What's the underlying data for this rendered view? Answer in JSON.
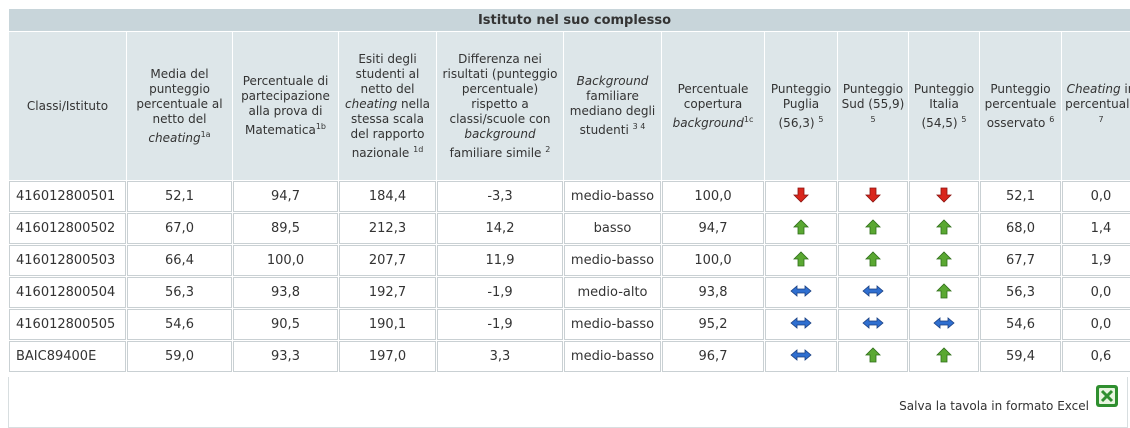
{
  "title": "Istituto nel suo complesso",
  "headers": [
    [
      {
        "text": "Classi/Istituto"
      }
    ],
    [
      {
        "text": "Media del punteggio percentuale al netto del "
      },
      {
        "text": "cheating",
        "style": "i"
      },
      {
        "text": "1a",
        "style": "sup"
      }
    ],
    [
      {
        "text": "Percentuale di partecipazione alla prova di Matematica"
      },
      {
        "text": "1b",
        "style": "sup"
      }
    ],
    [
      {
        "text": "Esiti degli studenti al netto del "
      },
      {
        "text": "cheating",
        "style": "i"
      },
      {
        "text": " nella stessa scala del rapporto nazionale "
      },
      {
        "text": "1d",
        "style": "sup"
      }
    ],
    [
      {
        "text": "Differenza nei risultati (punteggio percentuale) rispetto a classi/scuole con "
      },
      {
        "text": "background",
        "style": "i"
      },
      {
        "text": " familiare simile "
      },
      {
        "text": "2",
        "style": "sup"
      }
    ],
    [
      {
        "text": "Background",
        "style": "i"
      },
      {
        "text": " familiare mediano degli studenti "
      },
      {
        "text": "3 4",
        "style": "sup"
      }
    ],
    [
      {
        "text": "Percentuale copertura "
      },
      {
        "text": "background",
        "style": "i"
      },
      {
        "text": "1c",
        "style": "sup"
      }
    ],
    [
      {
        "text": "Punteggio Puglia (56,3) "
      },
      {
        "text": "5",
        "style": "sup"
      }
    ],
    [
      {
        "text": "Punteggio Sud (55,9) "
      },
      {
        "text": "5",
        "style": "sup"
      }
    ],
    [
      {
        "text": "Punteggio Italia (54,5) "
      },
      {
        "text": "5",
        "style": "sup"
      }
    ],
    [
      {
        "text": "Punteggio percentuale osservato "
      },
      {
        "text": "6",
        "style": "sup"
      }
    ],
    [
      {
        "text": "Cheating",
        "style": "i"
      },
      {
        "text": " in percentuale "
      },
      {
        "text": "7",
        "style": "sup"
      }
    ]
  ],
  "rows": [
    [
      "416012800501",
      "52,1",
      "94,7",
      "184,4",
      "-3,3",
      "medio-basso",
      "100,0",
      "down",
      "down",
      "down",
      "52,1",
      "0,0"
    ],
    [
      "416012800502",
      "67,0",
      "89,5",
      "212,3",
      "14,2",
      "basso",
      "94,7",
      "up",
      "up",
      "up",
      "68,0",
      "1,4"
    ],
    [
      "416012800503",
      "66,4",
      "100,0",
      "207,7",
      "11,9",
      "medio-basso",
      "100,0",
      "up",
      "up",
      "up",
      "67,7",
      "1,9"
    ],
    [
      "416012800504",
      "56,3",
      "93,8",
      "192,7",
      "-1,9",
      "medio-alto",
      "93,8",
      "same",
      "same",
      "up",
      "56,3",
      "0,0"
    ],
    [
      "416012800505",
      "54,6",
      "90,5",
      "190,1",
      "-1,9",
      "medio-basso",
      "95,2",
      "same",
      "same",
      "same",
      "54,6",
      "0,0"
    ],
    [
      "BAIC89400E",
      "59,0",
      "93,3",
      "197,0",
      "3,3",
      "medio-basso",
      "96,7",
      "same",
      "up",
      "up",
      "59,4",
      "0,6"
    ]
  ],
  "arrow_columns": [
    7,
    8,
    9
  ],
  "footer": "Salva la tavola in formato Excel"
}
